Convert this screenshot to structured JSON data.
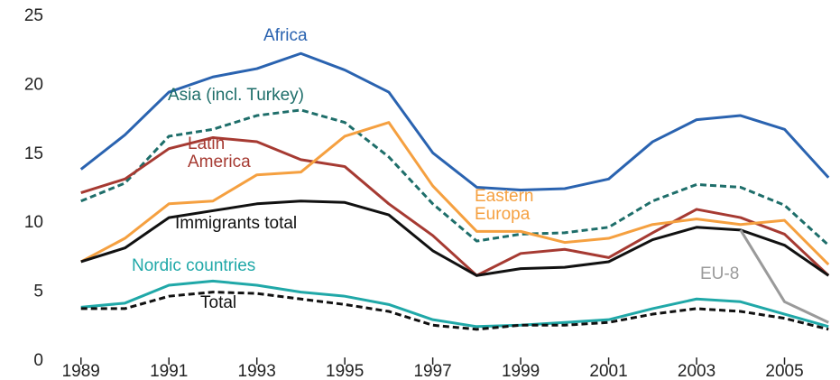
{
  "chart_data": {
    "type": "line",
    "x": [
      1989,
      1990,
      1991,
      1992,
      1993,
      1994,
      1995,
      1996,
      1997,
      1998,
      1999,
      2000,
      2001,
      2002,
      2003,
      2004,
      2005,
      2006
    ],
    "xlim": [
      1988.8,
      2006.2
    ],
    "xticks": [
      1989,
      1991,
      1993,
      1995,
      1997,
      1999,
      2001,
      2003,
      2005
    ],
    "ylim": [
      0,
      25
    ],
    "yticks": [
      0,
      5,
      10,
      15,
      20,
      25
    ],
    "series": [
      {
        "name": "Africa",
        "color": "#2a63b0",
        "style": "solid",
        "values": [
          13.9,
          16.4,
          19.5,
          20.6,
          21.2,
          22.3,
          21.1,
          19.5,
          15.1,
          12.6,
          12.4,
          12.5,
          13.2,
          15.9,
          17.5,
          17.8,
          16.8,
          13.3
        ]
      },
      {
        "name": "Asia (incl. Turkey)",
        "color": "#1e6e6a",
        "style": "dashed",
        "values": [
          11.6,
          12.9,
          16.3,
          16.8,
          17.8,
          18.2,
          17.3,
          14.8,
          11.4,
          8.7,
          9.2,
          9.3,
          9.7,
          11.6,
          12.8,
          12.6,
          11.3,
          8.4
        ]
      },
      {
        "name": "Latin America",
        "color": "#a63a32",
        "style": "solid",
        "values": [
          12.2,
          13.2,
          15.4,
          16.2,
          15.9,
          14.6,
          14.1,
          11.4,
          9.1,
          6.2,
          7.8,
          8.1,
          7.5,
          9.3,
          11.0,
          10.4,
          9.2,
          6.2
        ]
      },
      {
        "name": "Eastern Europa",
        "color": "#f5a040",
        "style": "solid",
        "values": [
          7.2,
          8.9,
          11.4,
          11.6,
          13.5,
          13.7,
          16.3,
          17.3,
          12.7,
          9.4,
          9.4,
          8.6,
          8.9,
          9.9,
          10.3,
          9.9,
          10.2,
          7.0
        ]
      },
      {
        "name": "Immigrants total",
        "color": "#111111",
        "style": "solid",
        "values": [
          7.2,
          8.2,
          10.4,
          10.9,
          11.4,
          11.6,
          11.5,
          10.6,
          8.0,
          6.2,
          6.7,
          6.8,
          7.2,
          8.8,
          9.7,
          9.5,
          8.4,
          6.2
        ]
      },
      {
        "name": "Nordic countries",
        "color": "#20a8a8",
        "style": "solid",
        "values": [
          3.9,
          4.2,
          5.5,
          5.8,
          5.5,
          5.0,
          4.7,
          4.1,
          3.0,
          2.5,
          2.6,
          2.8,
          3.0,
          3.8,
          4.5,
          4.3,
          3.4,
          2.5
        ]
      },
      {
        "name": "Total",
        "color": "#111111",
        "style": "dashed",
        "values": [
          3.8,
          3.8,
          4.7,
          5.0,
          4.9,
          4.5,
          4.1,
          3.6,
          2.6,
          2.3,
          2.6,
          2.6,
          2.8,
          3.4,
          3.8,
          3.6,
          3.1,
          2.3
        ]
      },
      {
        "name": "EU-8",
        "color": "#9a9a9a",
        "style": "solid",
        "values": [
          null,
          null,
          null,
          null,
          null,
          null,
          null,
          null,
          null,
          null,
          null,
          null,
          null,
          null,
          null,
          9.5,
          4.3,
          2.8
        ]
      }
    ]
  }
}
